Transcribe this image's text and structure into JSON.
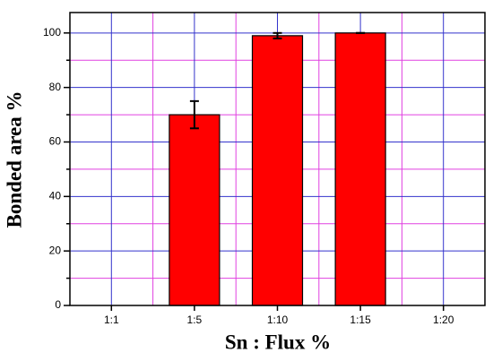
{
  "chart_data": {
    "type": "bar",
    "x_label": "Sn : Flux %",
    "y_label": "Bonded area %",
    "categories": [
      "1:1",
      "1:5",
      "1:10",
      "1:15",
      "1:20"
    ],
    "values": [
      null,
      70,
      99,
      100,
      null
    ],
    "errors": [
      null,
      5,
      1,
      0,
      null
    ],
    "color": "#ff0000",
    "ylim": [
      0,
      107.5
    ],
    "yticks": [
      0,
      20,
      40,
      60,
      80,
      100
    ],
    "minor_yticks": [
      10,
      30,
      50,
      70,
      90
    ],
    "grid": true,
    "grid_color": "#3333cc",
    "minor_grid_color": "#e040e0"
  }
}
